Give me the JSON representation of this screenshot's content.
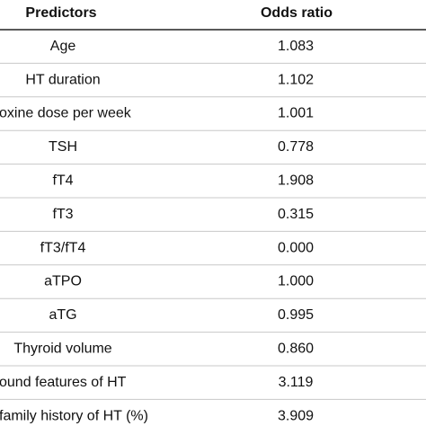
{
  "table": {
    "header": [
      "Predictors",
      "Odds ratio"
    ],
    "rows": [
      [
        "Age",
        "1.083"
      ],
      [
        "HT duration",
        "1.102"
      ],
      [
        "oxine dose per week",
        "1.001"
      ],
      [
        "TSH",
        "0.778"
      ],
      [
        "fT4",
        "1.908"
      ],
      [
        "fT3",
        "0.315"
      ],
      [
        "fT3/fT4",
        "0.000"
      ],
      [
        "aTPO",
        "1.000"
      ],
      [
        "aTG",
        "0.995"
      ],
      [
        "Thyroid volume",
        "0.860"
      ],
      [
        "ound features of HT",
        "3.119"
      ],
      [
        "family history of HT (%)",
        "3.909"
      ]
    ]
  }
}
